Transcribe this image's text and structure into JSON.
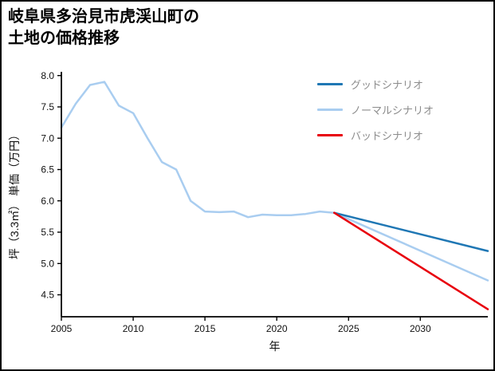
{
  "title": {
    "line1": "岐阜県多治見市虎渓山町の",
    "line2": "土地の価格推移"
  },
  "chart_data": {
    "type": "line",
    "title": "岐阜県多治見市虎渓山町の土地の価格推移",
    "xlabel": "年",
    "ylabel": "坪（3.3㎡） 単価（万円）",
    "xlim": [
      2005,
      2034.7
    ],
    "ylim": [
      4.15,
      8.06
    ],
    "xticks": [
      2005,
      2010,
      2015,
      2020,
      2025,
      2030
    ],
    "yticks": [
      4.5,
      5.0,
      5.5,
      6.0,
      6.5,
      7.0,
      7.5,
      8.0
    ],
    "grid": false,
    "legend_position": "upper right",
    "series": [
      {
        "id": "normal-scenario",
        "label": "ノーマルシナリオ",
        "color": "#a9cdf0",
        "x": [
          2005,
          2006,
          2007,
          2008,
          2009,
          2010,
          2011,
          2012,
          2013,
          2014,
          2015,
          2016,
          2017,
          2018,
          2019,
          2020,
          2021,
          2022,
          2023,
          2024,
          2034.7
        ],
        "y": [
          7.17,
          7.55,
          7.85,
          7.9,
          7.52,
          7.4,
          7.0,
          6.62,
          6.5,
          6.0,
          5.83,
          5.82,
          5.83,
          5.74,
          5.78,
          5.77,
          5.77,
          5.79,
          5.83,
          5.81,
          4.73
        ]
      },
      {
        "id": "good-scenario",
        "label": "グッドシナリオ",
        "color": "#1f77b4",
        "x": [
          2024,
          2034.7
        ],
        "y": [
          5.81,
          5.2
        ]
      },
      {
        "id": "bad-scenario",
        "label": "バッドシナリオ",
        "color": "#e8000b",
        "x": [
          2024,
          2034.7
        ],
        "y": [
          5.81,
          4.27
        ]
      }
    ],
    "legend": [
      {
        "label": "グッドシナリオ",
        "series": "good-scenario",
        "color": "#1f77b4"
      },
      {
        "label": "ノーマルシナリオ",
        "series": "normal-scenario",
        "color": "#a9cdf0"
      },
      {
        "label": "バッドシナリオ",
        "series": "bad-scenario",
        "color": "#e8000b"
      }
    ]
  }
}
